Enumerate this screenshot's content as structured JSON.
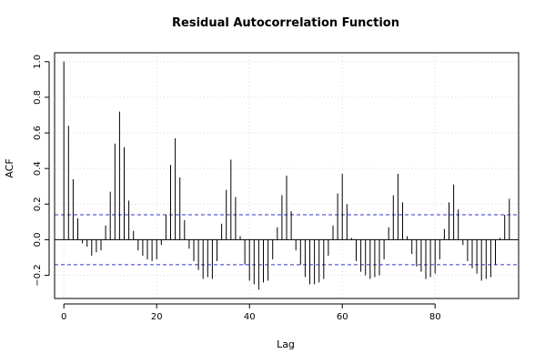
{
  "chart_data": {
    "type": "bar",
    "title": "Residual Autocorrelation Function",
    "xlabel": "Lag",
    "ylabel": "ACF",
    "xlim": [
      -2,
      98
    ],
    "ylim": [
      -0.33,
      1.05
    ],
    "x_ticks": [
      0,
      20,
      40,
      60,
      80
    ],
    "y_ticks": [
      -0.2,
      0.0,
      0.2,
      0.4,
      0.6,
      0.8,
      1.0
    ],
    "x_tick_labels": [
      "0",
      "20",
      "40",
      "60",
      "80"
    ],
    "y_tick_labels": [
      "−0.2",
      "0.0",
      "0.2",
      "0.4",
      "0.6",
      "0.8",
      "1.0"
    ],
    "grid": true,
    "confidence_bounds": [
      0.14,
      -0.14
    ],
    "lags": [
      0,
      1,
      2,
      3,
      4,
      5,
      6,
      7,
      8,
      9,
      10,
      11,
      12,
      13,
      14,
      15,
      16,
      17,
      18,
      19,
      20,
      21,
      22,
      23,
      24,
      25,
      26,
      27,
      28,
      29,
      30,
      31,
      32,
      33,
      34,
      35,
      36,
      37,
      38,
      39,
      40,
      41,
      42,
      43,
      44,
      45,
      46,
      47,
      48,
      49,
      50,
      51,
      52,
      53,
      54,
      55,
      56,
      57,
      58,
      59,
      60,
      61,
      62,
      63,
      64,
      65,
      66,
      67,
      68,
      69,
      70,
      71,
      72,
      73,
      74,
      75,
      76,
      77,
      78,
      79,
      80,
      81,
      82,
      83,
      84,
      85,
      86,
      87,
      88,
      89,
      90,
      91,
      92,
      93,
      94,
      95,
      96
    ],
    "values": [
      1.0,
      0.64,
      0.34,
      0.12,
      -0.02,
      -0.04,
      -0.09,
      -0.07,
      -0.06,
      0.08,
      0.27,
      0.54,
      0.72,
      0.52,
      0.22,
      0.05,
      -0.06,
      -0.09,
      -0.11,
      -0.12,
      -0.11,
      -0.03,
      0.14,
      0.42,
      0.57,
      0.35,
      0.11,
      -0.05,
      -0.12,
      -0.17,
      -0.22,
      -0.21,
      -0.22,
      -0.12,
      0.09,
      0.28,
      0.45,
      0.24,
      0.02,
      -0.14,
      -0.23,
      -0.25,
      -0.28,
      -0.24,
      -0.23,
      -0.11,
      0.07,
      0.25,
      0.36,
      0.16,
      -0.06,
      -0.14,
      -0.21,
      -0.25,
      -0.25,
      -0.24,
      -0.22,
      -0.09,
      0.08,
      0.26,
      0.37,
      0.2,
      0.01,
      -0.12,
      -0.18,
      -0.2,
      -0.22,
      -0.21,
      -0.2,
      -0.11,
      0.07,
      0.25,
      0.37,
      0.21,
      0.02,
      -0.08,
      -0.15,
      -0.18,
      -0.22,
      -0.21,
      -0.19,
      -0.11,
      0.06,
      0.21,
      0.31,
      0.17,
      -0.03,
      -0.12,
      -0.16,
      -0.19,
      -0.23,
      -0.22,
      -0.21,
      -0.14,
      0.01,
      0.14,
      0.23
    ]
  },
  "colors": {
    "bar": "#000000",
    "bounds": "#3333cc",
    "grid": "#d9d9d9",
    "axis": "#000000",
    "zero": "#000000"
  }
}
